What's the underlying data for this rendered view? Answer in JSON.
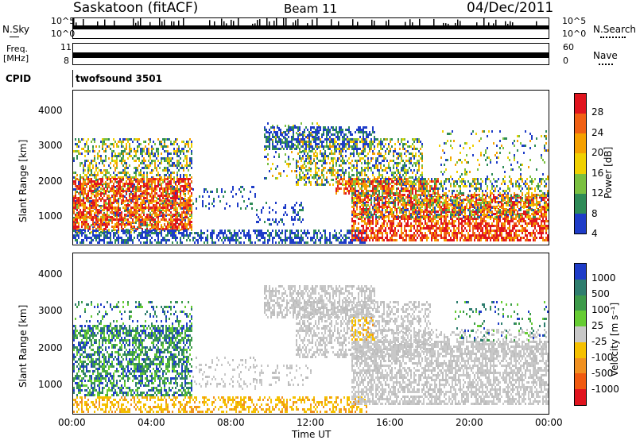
{
  "header": {
    "station": "Saskatoon (fitACF)",
    "beam": "Beam 11",
    "date": "04/Dec/2011"
  },
  "strips": {
    "nsky_label": "N.Sky",
    "nsky_ticks": [
      "10^5",
      "10^0"
    ],
    "nsearch_label": "N.Search",
    "nsearch_ticks": [
      "10^5",
      "10^0"
    ],
    "freq_label_1": "Freq.",
    "freq_label_2": "[MHz]",
    "freq_ticks": [
      "11",
      "8"
    ],
    "nave_label": "Nave",
    "nave_ticks": [
      "60",
      "0"
    ],
    "cpid_label": "CPID",
    "cpid_value": "twofsound 3501"
  },
  "chart_data": [
    {
      "type": "heatmap",
      "name": "power",
      "xlabel": "",
      "ylabel": "Slant Range [km]",
      "ylim": [
        200,
        4600
      ],
      "yticks": [
        1000,
        2000,
        3000,
        4000
      ],
      "colorbar": {
        "label": "Power [dB]",
        "ticks": [
          "28",
          "24",
          "20",
          "16",
          "12",
          "8",
          "4"
        ],
        "colors": [
          "#e0141e",
          "#f06014",
          "#f5a000",
          "#f0d000",
          "#7ac040",
          "#2e8b57",
          "#1e3cc8"
        ]
      }
    },
    {
      "type": "heatmap",
      "name": "velocity",
      "xlabel": "Time UT",
      "ylabel": "Slant Range [km]",
      "ylim": [
        200,
        4600
      ],
      "yticks": [
        1000,
        2000,
        3000,
        4000
      ],
      "xticks": [
        "00:00",
        "04:00",
        "08:00",
        "12:00",
        "16:00",
        "20:00",
        "00:00"
      ],
      "colorbar": {
        "label": "Velocity [m s⁻¹]",
        "ticks": [
          "1000",
          "500",
          "100",
          "25",
          "-25",
          "-100",
          "-500",
          "-1000"
        ],
        "colors": [
          "#1e3cc8",
          "#2e7d6e",
          "#3c9a4a",
          "#66cc33",
          "#c8c8c8",
          "#f5c000",
          "#f09020",
          "#f05a10",
          "#e0141e"
        ]
      }
    }
  ]
}
